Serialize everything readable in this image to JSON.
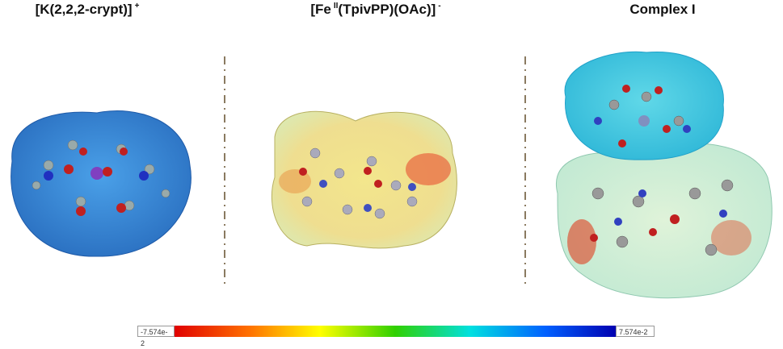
{
  "panels": [
    {
      "title": [
        {
          "text": "[K(2,2,2-crypt)]"
        },
        {
          "text": "+",
          "sup": true
        }
      ]
    },
    {
      "title": [
        {
          "text": "[Fe"
        },
        {
          "text": "II",
          "sup": true
        },
        {
          "text": "(TpivPP)(OAc)]"
        },
        {
          "text": "-",
          "sup": true
        }
      ]
    },
    {
      "title": [
        {
          "text": "Complex I"
        }
      ]
    }
  ],
  "colorbar": {
    "min_label": "-7.574e-2",
    "max_label": "7.574e-2"
  }
}
